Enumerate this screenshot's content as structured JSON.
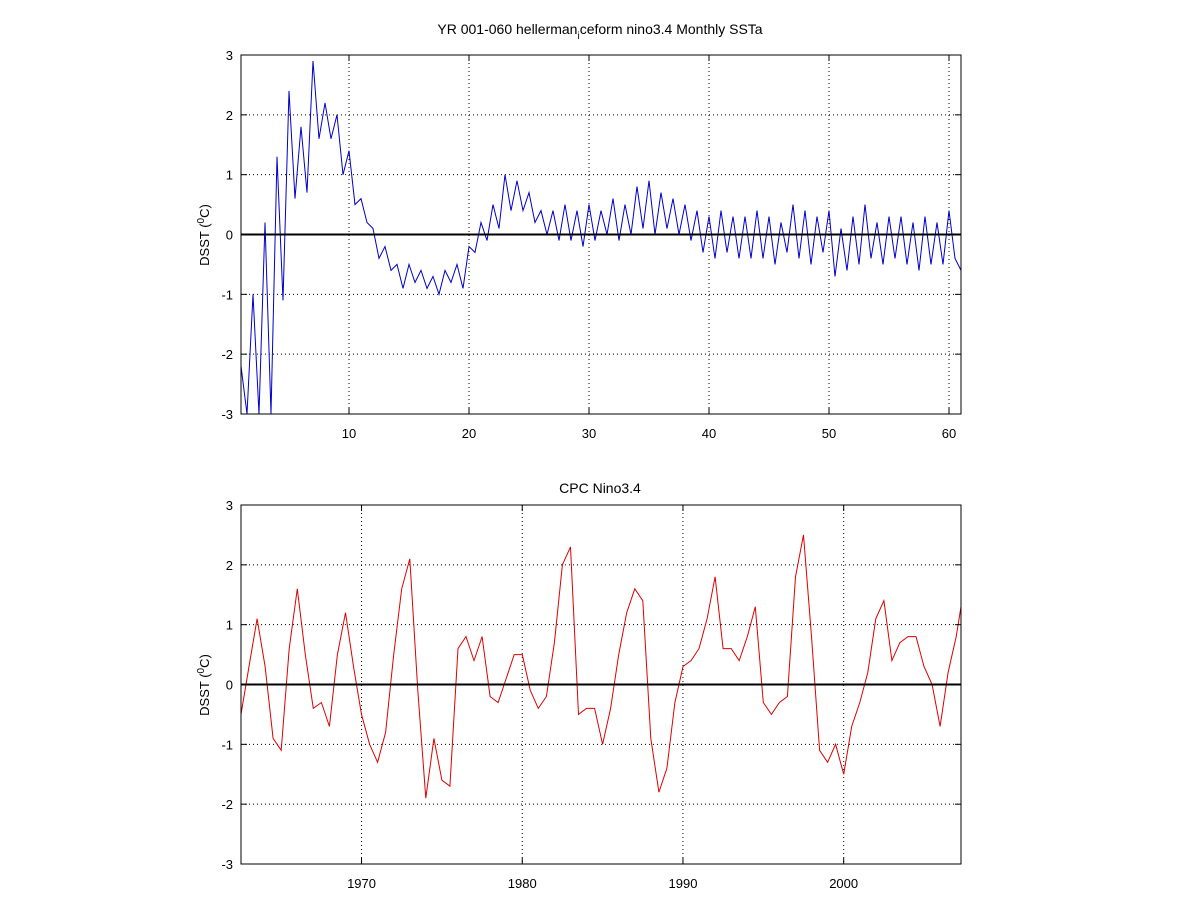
{
  "chart_data": [
    {
      "type": "line",
      "title": "YR 001-060 hellerman",
      "title_subscript": "i",
      "title_rest": "ceform nino3.4 Monthly SSTa",
      "ylabel_prefix": "DSST (",
      "ylabel_sup": "0",
      "ylabel_suffix": "C)",
      "xlim": [
        1,
        61
      ],
      "ylim": [
        -3,
        3
      ],
      "xticks": [
        10,
        20,
        30,
        40,
        50,
        60
      ],
      "yticks": [
        -3,
        -2,
        -1,
        0,
        1,
        2,
        3
      ],
      "grid": true,
      "zero_line": true,
      "color": "#0000cc",
      "x": [
        1,
        1.5,
        2,
        2.5,
        3,
        3.5,
        4,
        4.5,
        5,
        5.5,
        6,
        6.5,
        7,
        7.5,
        8,
        8.5,
        9,
        9.5,
        10,
        10.5,
        11,
        11.5,
        12,
        12.5,
        13,
        13.5,
        14,
        14.5,
        15,
        15.5,
        16,
        16.5,
        17,
        17.5,
        18,
        18.5,
        19,
        19.5,
        20,
        20.5,
        21,
        21.5,
        22,
        22.5,
        23,
        23.5,
        24,
        24.5,
        25,
        25.5,
        26,
        26.5,
        27,
        27.5,
        28,
        28.5,
        29,
        29.5,
        30,
        30.5,
        31,
        31.5,
        32,
        32.5,
        33,
        33.5,
        34,
        34.5,
        35,
        35.5,
        36,
        36.5,
        37,
        37.5,
        38,
        38.5,
        39,
        39.5,
        40,
        40.5,
        41,
        41.5,
        42,
        42.5,
        43,
        43.5,
        44,
        44.5,
        45,
        45.5,
        46,
        46.5,
        47,
        47.5,
        48,
        48.5,
        49,
        49.5,
        50,
        50.5,
        51,
        51.5,
        52,
        52.5,
        53,
        53.5,
        54,
        54.5,
        55,
        55.5,
        56,
        56.5,
        57,
        57.5,
        58,
        58.5,
        59,
        59.5,
        60,
        60.5,
        61
      ],
      "y": [
        -2.2,
        -3,
        -1.0,
        -3,
        0.2,
        -3,
        1.3,
        -1.1,
        2.4,
        0.6,
        1.8,
        0.7,
        2.9,
        1.6,
        2.2,
        1.6,
        2.0,
        1.0,
        1.4,
        0.5,
        0.6,
        0.2,
        0.1,
        -0.4,
        -0.2,
        -0.6,
        -0.5,
        -0.9,
        -0.5,
        -0.8,
        -0.6,
        -0.9,
        -0.7,
        -1.0,
        -0.6,
        -0.8,
        -0.5,
        -0.9,
        -0.2,
        -0.3,
        0.2,
        -0.1,
        0.5,
        0.1,
        1.0,
        0.4,
        0.9,
        0.4,
        0.7,
        0.2,
        0.4,
        0.0,
        0.4,
        -0.1,
        0.5,
        -0.1,
        0.4,
        -0.2,
        0.5,
        -0.1,
        0.4,
        0.0,
        0.6,
        -0.1,
        0.5,
        0.0,
        0.8,
        0.1,
        0.9,
        0.0,
        0.7,
        0.1,
        0.6,
        0.0,
        0.5,
        -0.1,
        0.4,
        -0.3,
        0.3,
        -0.4,
        0.4,
        -0.3,
        0.3,
        -0.4,
        0.3,
        -0.4,
        0.4,
        -0.4,
        0.3,
        -0.5,
        0.2,
        -0.3,
        0.5,
        -0.4,
        0.4,
        -0.5,
        0.3,
        -0.3,
        0.4,
        -0.7,
        0.1,
        -0.6,
        0.3,
        -0.5,
        0.5,
        -0.4,
        0.2,
        -0.5,
        0.3,
        -0.4,
        0.3,
        -0.5,
        0.2,
        -0.6,
        0.3,
        -0.5,
        0.2,
        -0.5,
        0.4,
        -0.4,
        -0.6
      ]
    },
    {
      "type": "line",
      "title": "CPC Nino3.4",
      "ylabel_prefix": "DSST (",
      "ylabel_sup": "0",
      "ylabel_suffix": "C)",
      "xlim": [
        1962.5,
        2007.3
      ],
      "ylim": [
        -3,
        3
      ],
      "xticks": [
        1970,
        1980,
        1990,
        2000
      ],
      "yticks": [
        -3,
        -2,
        -1,
        0,
        1,
        2,
        3
      ],
      "grid": true,
      "zero_line": true,
      "color": "#dd0000",
      "x": [
        1962.5,
        1963,
        1963.5,
        1964,
        1964.5,
        1965,
        1965.5,
        1966,
        1966.5,
        1967,
        1967.5,
        1968,
        1968.5,
        1969,
        1969.5,
        1970,
        1970.5,
        1971,
        1971.5,
        1972,
        1972.5,
        1973,
        1973.5,
        1974,
        1974.5,
        1975,
        1975.5,
        1976,
        1976.5,
        1977,
        1977.5,
        1978,
        1978.5,
        1979,
        1979.5,
        1980,
        1980.5,
        1981,
        1981.5,
        1982,
        1982.5,
        1983,
        1983.5,
        1984,
        1984.5,
        1985,
        1985.5,
        1986,
        1986.5,
        1987,
        1987.5,
        1988,
        1988.5,
        1989,
        1989.5,
        1990,
        1990.5,
        1991,
        1991.5,
        1992,
        1992.5,
        1993,
        1993.5,
        1994,
        1994.5,
        1995,
        1995.5,
        1996,
        1996.5,
        1997,
        1997.5,
        1998,
        1998.5,
        1999,
        1999.5,
        2000,
        2000.5,
        2001,
        2001.5,
        2002,
        2002.5,
        2003,
        2003.5,
        2004,
        2004.5,
        2005,
        2005.5,
        2006,
        2006.5,
        2007,
        2007.3
      ],
      "y": [
        -0.5,
        0.3,
        1.1,
        0.3,
        -0.9,
        -1.1,
        0.6,
        1.6,
        0.5,
        -0.4,
        -0.3,
        -0.7,
        0.5,
        1.2,
        0.3,
        -0.5,
        -1.0,
        -1.3,
        -0.8,
        0.5,
        1.6,
        2.1,
        -0.1,
        -1.9,
        -0.9,
        -1.6,
        -1.7,
        0.6,
        0.8,
        0.4,
        0.8,
        -0.2,
        -0.3,
        0.1,
        0.5,
        0.5,
        -0.1,
        -0.4,
        -0.2,
        0.7,
        2.0,
        2.3,
        -0.5,
        -0.4,
        -0.4,
        -1.0,
        -0.4,
        0.5,
        1.2,
        1.6,
        1.4,
        -0.9,
        -1.8,
        -1.4,
        -0.3,
        0.3,
        0.4,
        0.6,
        1.1,
        1.8,
        0.6,
        0.6,
        0.4,
        0.8,
        1.3,
        -0.3,
        -0.5,
        -0.3,
        -0.2,
        1.8,
        2.5,
        0.8,
        -1.1,
        -1.3,
        -1.0,
        -1.5,
        -0.7,
        -0.3,
        0.2,
        1.1,
        1.4,
        0.4,
        0.7,
        0.8,
        0.8,
        0.3,
        0.0,
        -0.7,
        0.2,
        0.8,
        1.3
      ]
    }
  ]
}
